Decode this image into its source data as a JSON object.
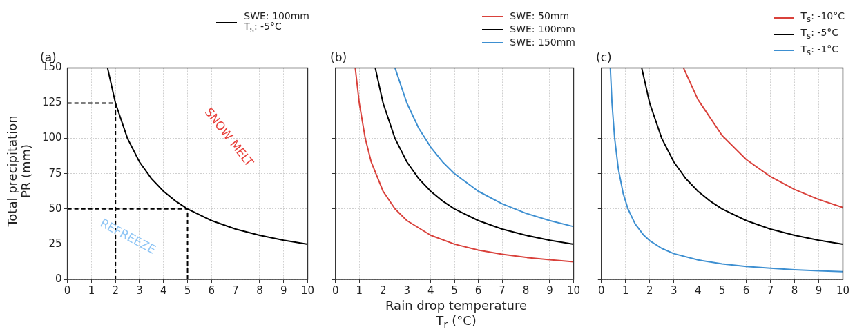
{
  "chart_data": [
    {
      "type": "line",
      "title": "(a)",
      "ylabel": "Total precipitation\nPR (mm)",
      "xlim": [
        0,
        10
      ],
      "ylim": [
        0,
        150
      ],
      "xticks": [
        0,
        1,
        2,
        3,
        4,
        5,
        6,
        7,
        8,
        9,
        10
      ],
      "yticks": [
        0,
        25,
        50,
        75,
        100,
        125,
        150
      ],
      "grid": true,
      "legend": "top right",
      "marker": "none",
      "annotations": [
        "SNOW MELT",
        "REFREEZE"
      ],
      "series": [
        {
          "name": "SWE: 100mm\nT$_{s}$: -5°C",
          "color": "#000000",
          "line_style": "solid",
          "x": [
            1.67,
            2,
            2.5,
            3,
            3.5,
            4,
            4.5,
            5,
            6,
            7,
            8,
            9,
            10
          ],
          "values": [
            150,
            125,
            100,
            83.3,
            71.4,
            62.5,
            55.6,
            50,
            41.7,
            35.7,
            31.3,
            27.8,
            25
          ]
        },
        {
          "type": "line",
          "color": "#000000",
          "line_style": "dashed",
          "x": [
            0,
            2,
            2
          ],
          "values": [
            125,
            125,
            0
          ]
        },
        {
          "type": "line",
          "color": "#000000",
          "line_style": "dashed",
          "x": [
            0,
            5,
            5
          ],
          "values": [
            50,
            50,
            0
          ]
        }
      ]
    },
    {
      "type": "line",
      "title": "(b)",
      "xlabel": "Rain drop temperature\nT$_{r}$ (°C)",
      "xlim": [
        0,
        10
      ],
      "ylim": [
        0,
        150
      ],
      "xticks": [
        0,
        1,
        2,
        3,
        4,
        5,
        6,
        7,
        8,
        9,
        10
      ],
      "yticks": [
        0,
        25,
        50,
        75,
        100,
        125,
        150
      ],
      "grid": true,
      "legend": "top right",
      "marker": "none",
      "tick_labels": "x",
      "series": [
        {
          "name": "SWE: 50mm",
          "color": "#d9413b",
          "line_style": "solid",
          "x": [
            0.83,
            1,
            1.25,
            1.5,
            2,
            2.5,
            3,
            4,
            5,
            6,
            7,
            8,
            9,
            10
          ],
          "values": [
            150,
            125,
            100,
            83.3,
            62.5,
            50,
            41.7,
            31.3,
            25,
            20.8,
            17.9,
            15.6,
            13.9,
            12.5
          ]
        },
        {
          "name": "SWE: 100mm",
          "color": "#000000",
          "line_style": "solid",
          "x": [
            1.67,
            2,
            2.5,
            3,
            3.5,
            4,
            4.5,
            5,
            6,
            7,
            8,
            9,
            10
          ],
          "values": [
            150,
            125,
            100,
            83.3,
            71.4,
            62.5,
            55.6,
            50,
            41.7,
            35.7,
            31.3,
            27.8,
            25
          ]
        },
        {
          "name": "SWE: 150mm",
          "color": "#3d8fd1",
          "line_style": "solid",
          "x": [
            2.5,
            3,
            3.5,
            4,
            4.5,
            5,
            6,
            7,
            8,
            9,
            10
          ],
          "values": [
            150,
            125,
            107.1,
            93.8,
            83.3,
            75,
            62.5,
            53.6,
            46.9,
            41.7,
            37.5
          ]
        }
      ]
    },
    {
      "type": "line",
      "title": "(c)",
      "xlim": [
        0,
        10
      ],
      "ylim": [
        0,
        150
      ],
      "xticks": [
        0,
        1,
        2,
        3,
        4,
        5,
        6,
        7,
        8,
        9,
        10
      ],
      "yticks": [
        0,
        25,
        50,
        75,
        100,
        125,
        150
      ],
      "grid": true,
      "legend": "top right",
      "marker": "none",
      "tick_labels": "x",
      "series": [
        {
          "name": "T$_{s}$: -10°C",
          "color": "#d9413b",
          "line_style": "solid",
          "x": [
            3.4,
            4,
            5,
            6,
            7,
            8,
            9,
            10
          ],
          "values": [
            150,
            127.5,
            102,
            85,
            72.9,
            63.8,
            56.7,
            51
          ]
        },
        {
          "name": "T$_{s}$: -5°C",
          "color": "#000000",
          "line_style": "solid",
          "x": [
            1.67,
            2,
            2.5,
            3,
            3.5,
            4,
            4.5,
            5,
            6,
            7,
            8,
            9,
            10
          ],
          "values": [
            150,
            125,
            100,
            83.3,
            71.4,
            62.5,
            55.6,
            50,
            41.7,
            35.7,
            31.3,
            27.8,
            25
          ]
        },
        {
          "name": "T$_{s}$: -1°C",
          "color": "#3d8fd1",
          "line_style": "solid",
          "x": [
            0.37,
            0.44,
            0.55,
            0.7,
            0.9,
            1.1,
            1.4,
            1.75,
            2,
            2.5,
            3,
            4,
            5,
            6,
            7,
            8,
            9,
            10
          ],
          "values": [
            150,
            125,
            100,
            78.6,
            61.1,
            50,
            39.3,
            31.4,
            27.5,
            22,
            18.3,
            13.8,
            11,
            9.2,
            7.9,
            6.9,
            6.1,
            5.5
          ]
        }
      ]
    }
  ]
}
